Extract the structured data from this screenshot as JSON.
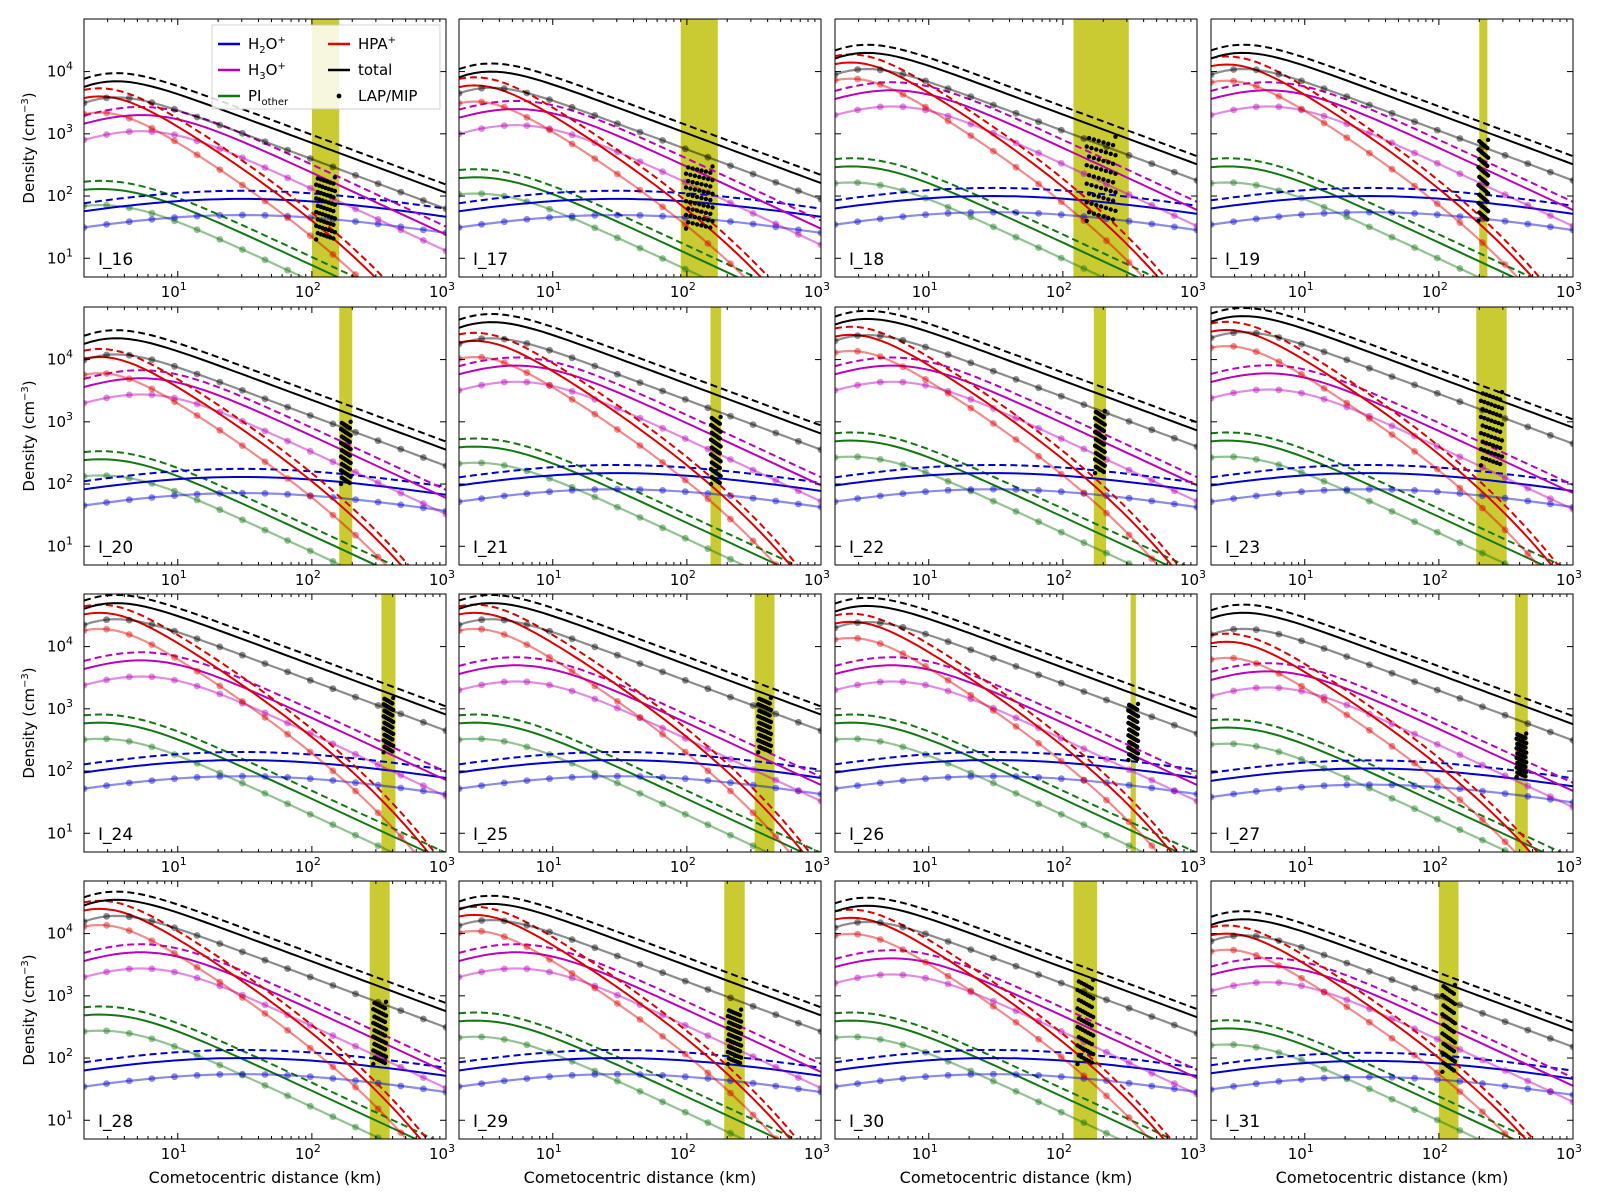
{
  "figure": {
    "ylabel": "Density (cm",
    "ylabel_sup": "−3",
    "ylabel_close": ")",
    "xlabel": "Cometocentric distance (km)"
  },
  "legend": {
    "placement": "top of first panel",
    "entries": [
      {
        "key": "h2o",
        "label": "H2O+",
        "main": "H",
        "sub": "2",
        "rest": "O",
        "sup": "+",
        "color": "#0000cc",
        "style": "line"
      },
      {
        "key": "h3o",
        "label": "H3O+",
        "main": "H",
        "sub": "3",
        "rest": "O",
        "sup": "+",
        "color": "#bb00bb",
        "style": "line"
      },
      {
        "key": "pio",
        "label": "PIother",
        "main": "PI",
        "sub": "other",
        "rest": "",
        "sup": "",
        "color": "#117711",
        "style": "line"
      },
      {
        "key": "hpa",
        "label": "HPA+",
        "main": "HPA",
        "sub": "",
        "rest": "",
        "sup": "+",
        "color": "#dd0000",
        "style": "line"
      },
      {
        "key": "total",
        "label": "total",
        "main": "total",
        "sub": "",
        "rest": "",
        "sup": "",
        "color": "#000000",
        "style": "line"
      },
      {
        "key": "lap",
        "label": "LAP/MIP",
        "main": "LAP/MIP",
        "sub": "",
        "rest": "",
        "sup": "",
        "color": "#000000",
        "style": "dots"
      }
    ]
  },
  "chart_data": {
    "type": "line",
    "x_scale": "log",
    "y_scale": "log",
    "xlim": [
      2,
      1000
    ],
    "ylim": [
      5,
      70000
    ],
    "x_ticks": [
      {
        "v": 10,
        "label": "10",
        "sup": "1"
      },
      {
        "v": 100,
        "label": "10",
        "sup": "2"
      },
      {
        "v": 1000,
        "label": "10",
        "sup": "3"
      }
    ],
    "y_ticks": [
      {
        "v": 10,
        "label": "10",
        "sup": "1"
      },
      {
        "v": 100,
        "label": "10",
        "sup": "2"
      },
      {
        "v": 1000,
        "label": "10",
        "sup": "3"
      },
      {
        "v": 10000,
        "label": "10",
        "sup": "4"
      }
    ],
    "panels": [
      {
        "label": "I_16",
        "band": [
          100,
          160
        ],
        "total": 7000,
        "hpa": 4000,
        "h3o": 2000,
        "pio": 130,
        "h2o": 90,
        "obs_lo": 20,
        "obs_hi": 200
      },
      {
        "label": "I_17",
        "band": [
          90,
          170
        ],
        "total": 10000,
        "hpa": 6000,
        "h3o": 2500,
        "pio": 200,
        "h2o": 90,
        "obs_lo": 30,
        "obs_hi": 300
      },
      {
        "label": "I_18",
        "band": [
          120,
          310
        ],
        "total": 20000,
        "hpa": 14000,
        "h3o": 5000,
        "pio": 300,
        "h2o": 100,
        "obs_lo": 40,
        "obs_hi": 900
      },
      {
        "label": "I_19",
        "band": [
          200,
          230
        ],
        "total": 20000,
        "hpa": 13000,
        "h3o": 5000,
        "pio": 300,
        "h2o": 100,
        "obs_lo": 40,
        "obs_hi": 800
      },
      {
        "label": "I_20",
        "band": [
          160,
          200
        ],
        "total": 22000,
        "hpa": 11000,
        "h3o": 5000,
        "pio": 250,
        "h2o": 130,
        "obs_lo": 100,
        "obs_hi": 1000
      },
      {
        "label": "I_21",
        "band": [
          150,
          180
        ],
        "total": 40000,
        "hpa": 20000,
        "h3o": 8000,
        "pio": 400,
        "h2o": 150,
        "obs_lo": 100,
        "obs_hi": 1200
      },
      {
        "label": "I_22",
        "band": [
          170,
          210
        ],
        "total": 45000,
        "hpa": 25000,
        "h3o": 8000,
        "pio": 500,
        "h2o": 150,
        "obs_lo": 150,
        "obs_hi": 1500
      },
      {
        "label": "I_23",
        "band": [
          190,
          320
        ],
        "total": 50000,
        "hpa": 30000,
        "h3o": 6000,
        "pio": 500,
        "h2o": 150,
        "obs_lo": 200,
        "obs_hi": 3000
      },
      {
        "label": "I_24",
        "band": [
          330,
          420
        ],
        "total": 50000,
        "hpa": 35000,
        "h3o": 6000,
        "pio": 600,
        "h2o": 150,
        "obs_lo": 200,
        "obs_hi": 1500
      },
      {
        "label": "I_25",
        "band": [
          320,
          450
        ],
        "total": 50000,
        "hpa": 35000,
        "h3o": 5000,
        "pio": 600,
        "h2o": 150,
        "obs_lo": 200,
        "obs_hi": 1500
      },
      {
        "label": "I_26",
        "band": [
          320,
          350
        ],
        "total": 45000,
        "hpa": 25000,
        "h3o": 5000,
        "pio": 600,
        "h2o": 150,
        "obs_lo": 150,
        "obs_hi": 1200
      },
      {
        "label": "I_27",
        "band": [
          370,
          460
        ],
        "total": 35000,
        "hpa": 12000,
        "h3o": 4000,
        "pio": 500,
        "h2o": 110,
        "obs_lo": 80,
        "obs_hi": 400
      },
      {
        "label": "I_28",
        "band": [
          270,
          380
        ],
        "total": 35000,
        "hpa": 25000,
        "h3o": 5000,
        "pio": 500,
        "h2o": 100,
        "obs_lo": 80,
        "obs_hi": 800
      },
      {
        "label": "I_29",
        "band": [
          190,
          270
        ],
        "total": 30000,
        "hpa": 20000,
        "h3o": 5000,
        "pio": 400,
        "h2o": 100,
        "obs_lo": 80,
        "obs_hi": 600
      },
      {
        "label": "I_30",
        "band": [
          120,
          180
        ],
        "total": 28000,
        "hpa": 18000,
        "h3o": 4000,
        "pio": 400,
        "h2o": 100,
        "obs_lo": 80,
        "obs_hi": 1800
      },
      {
        "label": "I_31",
        "band": [
          100,
          140
        ],
        "total": 17000,
        "hpa": 10000,
        "h3o": 3000,
        "pio": 300,
        "h2o": 90,
        "obs_lo": 60,
        "obs_hi": 1500
      }
    ]
  },
  "colors": {
    "h2o": "#0000cc",
    "h3o": "#bb00bb",
    "pio": "#117711",
    "hpa": "#dd0000",
    "total": "#000000",
    "band": "#c4c41c"
  }
}
